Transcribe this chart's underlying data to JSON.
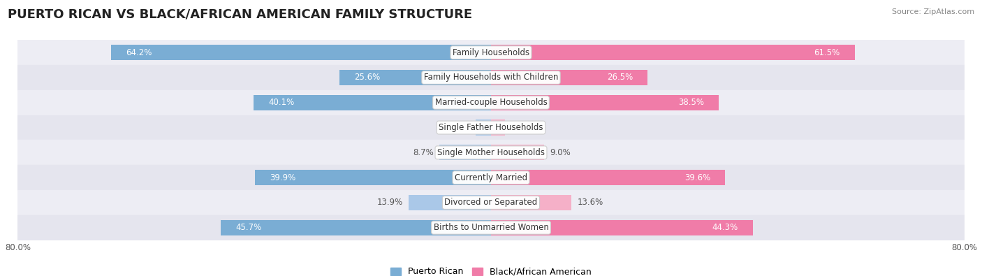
{
  "title": "PUERTO RICAN VS BLACK/AFRICAN AMERICAN FAMILY STRUCTURE",
  "source": "Source: ZipAtlas.com",
  "categories": [
    "Family Households",
    "Family Households with Children",
    "Married-couple Households",
    "Single Father Households",
    "Single Mother Households",
    "Currently Married",
    "Divorced or Separated",
    "Births to Unmarried Women"
  ],
  "puerto_rican": [
    64.2,
    25.6,
    40.1,
    2.6,
    8.7,
    39.9,
    13.9,
    45.7
  ],
  "black_african": [
    61.5,
    26.5,
    38.5,
    2.4,
    9.0,
    39.6,
    13.6,
    44.3
  ],
  "blue_color": "#7aadd4",
  "pink_color": "#f07ca8",
  "pink_light": "#f5b0c8",
  "blue_light": "#aac8e8",
  "row_colors": [
    "#ededf4",
    "#e5e5ee"
  ],
  "max_val": 80.0,
  "title_fontsize": 13,
  "label_fontsize": 8.5,
  "tick_fontsize": 8.5,
  "legend_fontsize": 9,
  "bar_height": 0.62,
  "white_text_threshold": 15
}
